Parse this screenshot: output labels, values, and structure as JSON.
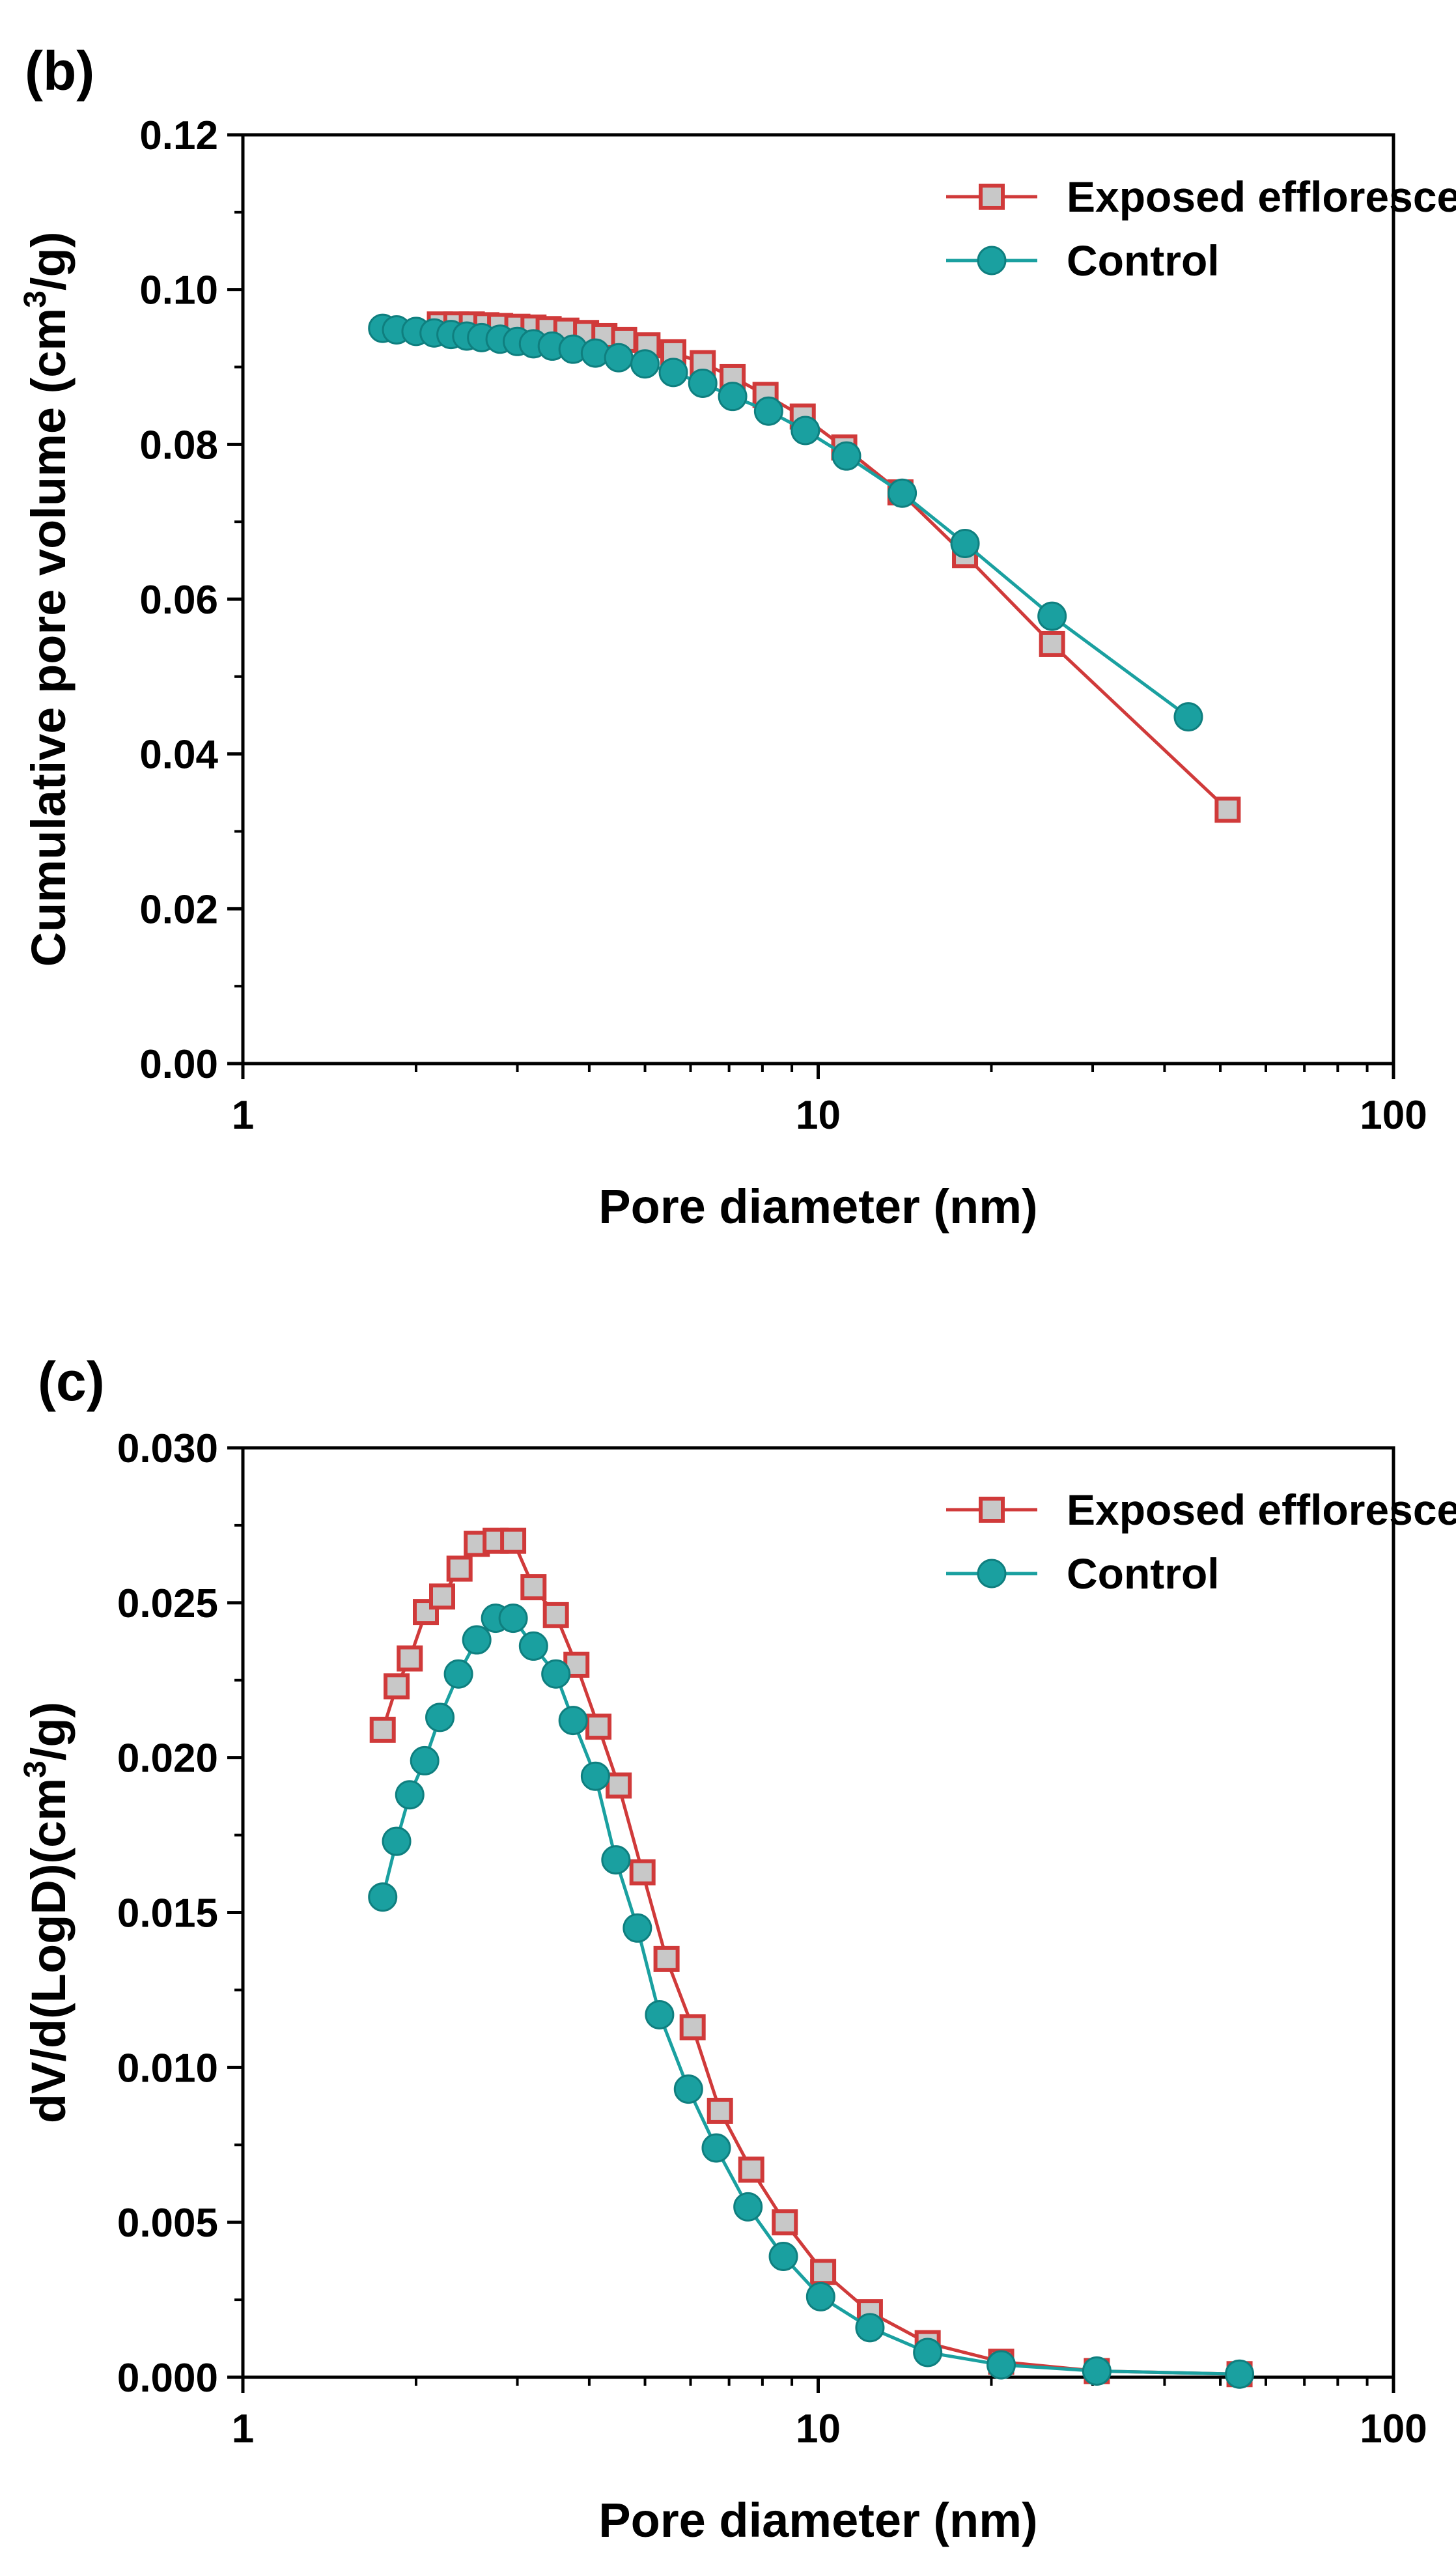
{
  "chart_data": [
    {
      "panel_label": "(b)",
      "type": "line",
      "xscale": "log",
      "xlim": [
        1,
        100
      ],
      "ylim": [
        0,
        0.12
      ],
      "xticks": [
        1,
        10,
        100
      ],
      "xtick_labels": [
        "1",
        "10",
        "100"
      ],
      "yticks": [
        0,
        0.02,
        0.04,
        0.06,
        0.08,
        0.1,
        0.12
      ],
      "ytick_labels": [
        "0.00",
        "0.02",
        "0.04",
        "0.06",
        "0.08",
        "0.10",
        "0.12"
      ],
      "xlabel": "Pore diameter (nm)",
      "ylabel": {
        "pre": "Cumulative pore volume (cm",
        "sup": "3",
        "post": "/g)"
      },
      "legend_position": "top-right",
      "series": [
        {
          "name": "Exposed efflorescence",
          "color": "#d03a3a",
          "fill": "#c8c8c8",
          "marker": "square",
          "x": [
            2.2,
            2.35,
            2.5,
            2.65,
            2.8,
            3.0,
            3.2,
            3.4,
            3.65,
            3.95,
            4.25,
            4.6,
            5.05,
            5.6,
            6.3,
            7.1,
            8.1,
            9.4,
            11.1,
            13.9,
            18.0,
            25.5,
            51.5
          ],
          "y": [
            0.0955,
            0.0955,
            0.0955,
            0.0954,
            0.0953,
            0.0952,
            0.0951,
            0.0949,
            0.0947,
            0.0944,
            0.094,
            0.0935,
            0.0928,
            0.0919,
            0.0905,
            0.0887,
            0.0864,
            0.0836,
            0.0796,
            0.0738,
            0.0657,
            0.0542,
            0.0328
          ]
        },
        {
          "name": "Control",
          "color": "#1aa0a0",
          "fill": "#1aa0a0",
          "marker": "circle",
          "x": [
            1.75,
            1.85,
            2.0,
            2.15,
            2.3,
            2.45,
            2.6,
            2.8,
            3.0,
            3.2,
            3.45,
            3.75,
            4.1,
            4.5,
            5.0,
            5.6,
            6.3,
            7.1,
            8.2,
            9.5,
            11.2,
            14.0,
            18.0,
            25.5,
            44.0
          ],
          "y": [
            0.095,
            0.0948,
            0.0946,
            0.0944,
            0.0942,
            0.094,
            0.0938,
            0.0936,
            0.0933,
            0.093,
            0.0927,
            0.0923,
            0.0918,
            0.0912,
            0.0904,
            0.0893,
            0.0879,
            0.0862,
            0.0843,
            0.0818,
            0.0785,
            0.0737,
            0.0672,
            0.0578,
            0.0448
          ]
        }
      ]
    },
    {
      "panel_label": "(c)",
      "type": "line",
      "xscale": "log",
      "xlim": [
        1,
        100
      ],
      "ylim": [
        0,
        0.03
      ],
      "xticks": [
        1,
        10,
        100
      ],
      "xtick_labels": [
        "1",
        "10",
        "100"
      ],
      "yticks": [
        0,
        0.005,
        0.01,
        0.015,
        0.02,
        0.025,
        0.03
      ],
      "ytick_labels": [
        "0.000",
        "0.005",
        "0.010",
        "0.015",
        "0.020",
        "0.025",
        "0.030"
      ],
      "xlabel": "Pore diameter (nm)",
      "ylabel": {
        "pre": "dV/d(LogD)(cm",
        "sup": "3",
        "post": "/g)"
      },
      "legend_position": "top-right",
      "series": [
        {
          "name": "Exposed efflorescence",
          "color": "#d03a3a",
          "fill": "#c8c8c8",
          "marker": "square",
          "x": [
            1.75,
            1.85,
            1.95,
            2.08,
            2.22,
            2.38,
            2.55,
            2.75,
            2.95,
            3.2,
            3.5,
            3.8,
            4.15,
            4.5,
            4.95,
            5.45,
            6.05,
            6.75,
            7.65,
            8.75,
            10.2,
            12.3,
            15.5,
            20.8,
            30.5,
            54.0
          ],
          "y": [
            0.0209,
            0.0223,
            0.0232,
            0.0247,
            0.0252,
            0.0261,
            0.0269,
            0.027,
            0.027,
            0.0255,
            0.0246,
            0.023,
            0.021,
            0.0191,
            0.0163,
            0.0135,
            0.0113,
            0.0086,
            0.0067,
            0.005,
            0.0034,
            0.0021,
            0.0011,
            0.0005,
            0.0002,
            0.0001
          ]
        },
        {
          "name": "Control",
          "color": "#1aa0a0",
          "fill": "#1aa0a0",
          "marker": "circle",
          "x": [
            1.75,
            1.85,
            1.95,
            2.07,
            2.2,
            2.37,
            2.55,
            2.75,
            2.95,
            3.2,
            3.5,
            3.75,
            4.1,
            4.45,
            4.85,
            5.3,
            5.95,
            6.65,
            7.55,
            8.7,
            10.1,
            12.3,
            15.5,
            20.8,
            30.5,
            54.0
          ],
          "y": [
            0.0155,
            0.0173,
            0.0188,
            0.0199,
            0.0213,
            0.0227,
            0.0238,
            0.0245,
            0.0245,
            0.0236,
            0.0227,
            0.0212,
            0.0194,
            0.0167,
            0.0145,
            0.0117,
            0.0093,
            0.0074,
            0.0055,
            0.0039,
            0.0026,
            0.0016,
            0.0008,
            0.0004,
            0.0002,
            0.0001
          ]
        }
      ]
    }
  ]
}
